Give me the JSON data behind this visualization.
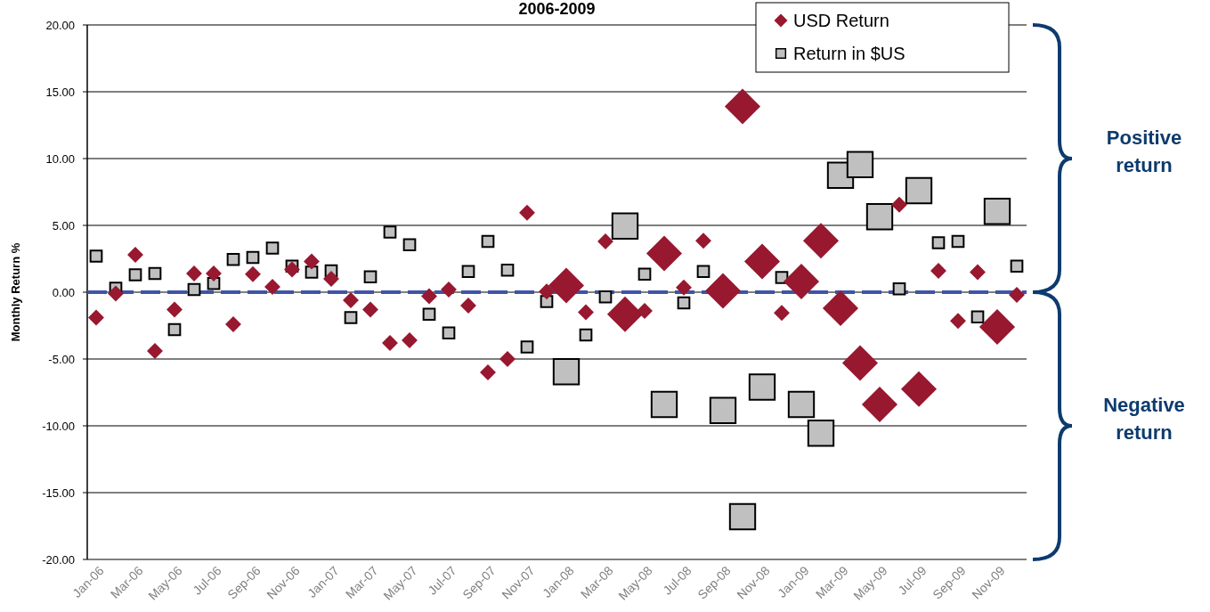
{
  "chart_data": {
    "type": "bubble",
    "title": "2006-2009",
    "ylabel": "Monthly Return %",
    "categories": [
      "Jan-06",
      null,
      "Mar-06",
      null,
      "May-06",
      null,
      "Jul-06",
      null,
      "Sep-06",
      null,
      "Nov-06",
      null,
      "Jan-07",
      null,
      "Mar-07",
      null,
      "May-07",
      null,
      "Jul-07",
      null,
      "Sep-07",
      null,
      "Nov-07",
      null,
      "Jan-08",
      null,
      "Mar-08",
      null,
      "May-08",
      null,
      "Jul-08",
      null,
      "Sep-08",
      null,
      "Nov-08",
      null,
      "Jan-09",
      null,
      "Mar-09",
      null,
      "May-09",
      null,
      "Jul-09",
      null,
      "Sep-09",
      null,
      "Nov-09",
      null
    ],
    "series": [
      {
        "name": "USD Return",
        "color": "#97182f",
        "marker": "diamond",
        "values": [
          -1.9,
          -0.1,
          2.8,
          -4.4,
          -1.3,
          1.4,
          1.4,
          -2.4,
          1.35,
          0.4,
          1.7,
          2.3,
          1.0,
          -0.6,
          -1.3,
          -3.8,
          -3.6,
          -0.3,
          0.2,
          -1.0,
          -6.0,
          -5.0,
          5.95,
          0.05,
          0.5,
          -1.5,
          3.8,
          -1.65,
          -1.4,
          2.9,
          0.35,
          3.85,
          0.1,
          13.9,
          2.3,
          -1.55,
          0.8,
          3.85,
          -1.2,
          -5.3,
          -8.4,
          6.55,
          -7.25,
          1.6,
          -2.15,
          1.5,
          -2.6,
          -0.2
        ],
        "sizes": [
          0.2,
          0.2,
          0.2,
          0.2,
          0.2,
          0.2,
          0.2,
          0.2,
          0.2,
          0.2,
          0.2,
          0.2,
          0.2,
          0.2,
          0.2,
          0.2,
          0.2,
          0.2,
          0.2,
          0.2,
          0.2,
          0.2,
          0.2,
          0.2,
          1,
          0.2,
          0.2,
          1,
          0.2,
          1,
          0.2,
          0.2,
          1,
          1,
          1,
          0.2,
          1,
          1,
          1,
          1,
          1,
          0.2,
          1,
          0.2,
          0.2,
          0.2,
          1,
          0.2
        ]
      },
      {
        "name": "Return in $US",
        "color": "#c0c0c0",
        "marker": "square",
        "values": [
          2.7,
          0.3,
          1.3,
          1.4,
          -2.8,
          0.2,
          0.65,
          2.45,
          2.6,
          3.3,
          1.95,
          1.5,
          1.6,
          -1.9,
          1.15,
          4.5,
          3.55,
          -1.65,
          -3.05,
          1.55,
          3.8,
          1.65,
          -4.1,
          -0.7,
          -5.95,
          -3.2,
          -0.35,
          4.95,
          1.35,
          -8.4,
          -0.8,
          1.55,
          -8.85,
          -16.8,
          -7.1,
          1.1,
          -8.4,
          -10.55,
          8.75,
          9.55,
          5.65,
          0.25,
          7.6,
          3.7,
          3.8,
          -1.85,
          6.05,
          1.95
        ],
        "sizes": [
          0.2,
          0.2,
          0.2,
          0.2,
          0.2,
          0.2,
          0.2,
          0.2,
          0.2,
          0.2,
          0.2,
          0.2,
          0.2,
          0.2,
          0.2,
          0.2,
          0.2,
          0.2,
          0.2,
          0.2,
          0.2,
          0.2,
          0.2,
          0.2,
          1,
          0.2,
          0.2,
          1,
          0.2,
          1,
          0.2,
          0.2,
          1,
          1,
          1,
          0.2,
          1,
          1,
          1,
          1,
          1,
          0.2,
          1,
          0.2,
          0.2,
          0.2,
          1,
          0.2
        ]
      }
    ],
    "ylim": [
      -20,
      20
    ],
    "yticks": [
      {
        "value": -20,
        "label": "-20.00"
      },
      {
        "value": -15,
        "label": "-15.00"
      },
      {
        "value": -10,
        "label": "-10.00"
      },
      {
        "value": -5,
        "label": "-5.00"
      },
      {
        "value": 0,
        "label": "0.00"
      },
      {
        "value": 5,
        "label": "5.00"
      },
      {
        "value": 10,
        "label": "10.00"
      },
      {
        "value": 15,
        "label": "15.00"
      },
      {
        "value": 20,
        "label": "20.00"
      }
    ],
    "grid": "y",
    "legend": "top right",
    "ref_lines": [
      {
        "axis": "y",
        "value": 0,
        "color": "#3f54a8",
        "line_style": "dashed"
      }
    ],
    "annotations": [
      "Positive return",
      "Negative return"
    ]
  }
}
